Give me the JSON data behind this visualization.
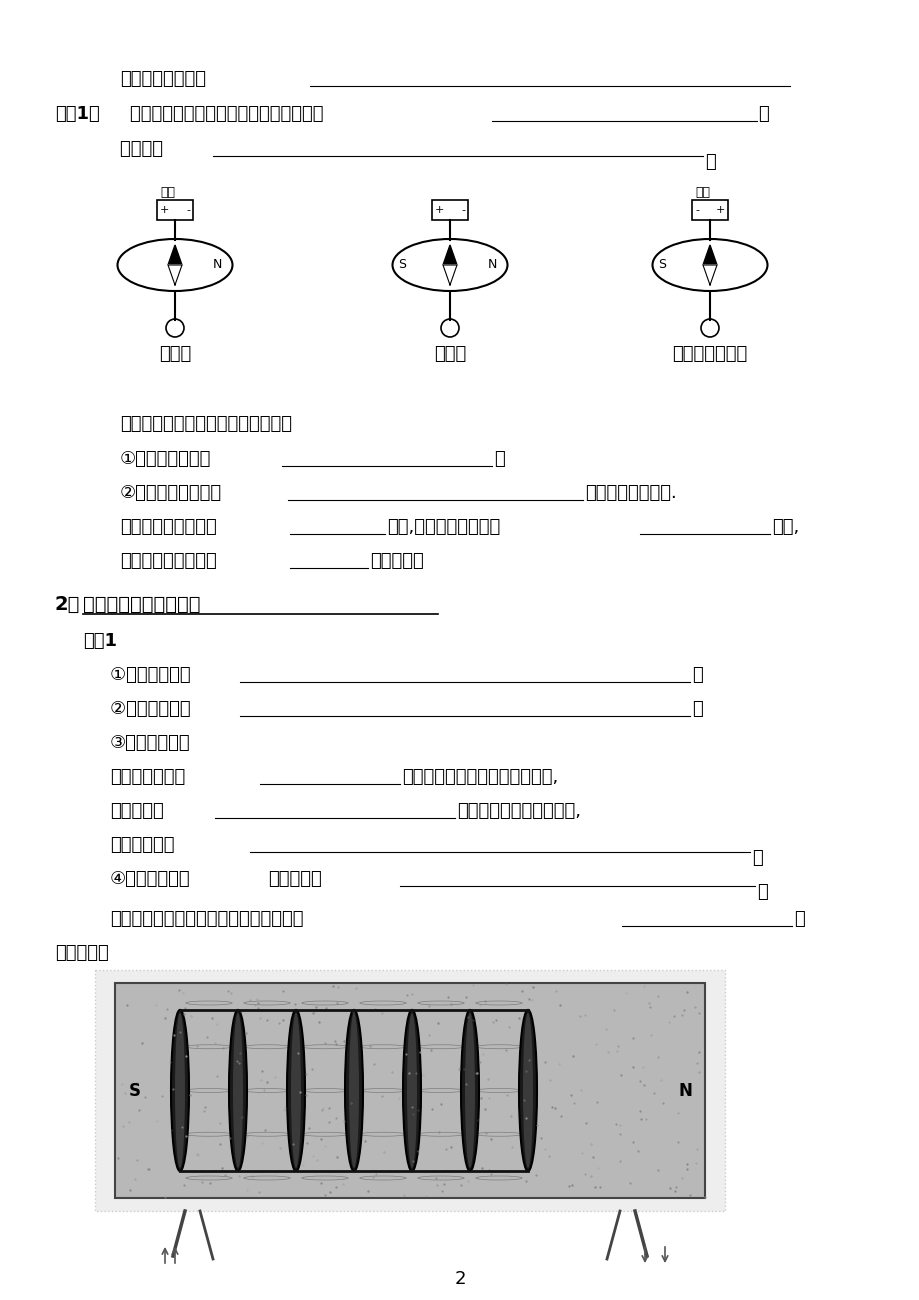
{
  "bg_color": "#ffffff",
  "page_number": "2",
  "title_line": "奥斯特实验证明：",
  "diagram_captions": [
    "甲通电",
    "乙断电",
    "丙改变电流方向"
  ],
  "discuss_line": "讨论，做奥斯特实验时应注意什么？",
  "exp1": "①、实验目的： ",
  "exp2": "②、实验器材： ",
  "exp3": "③、实验步骤："
}
